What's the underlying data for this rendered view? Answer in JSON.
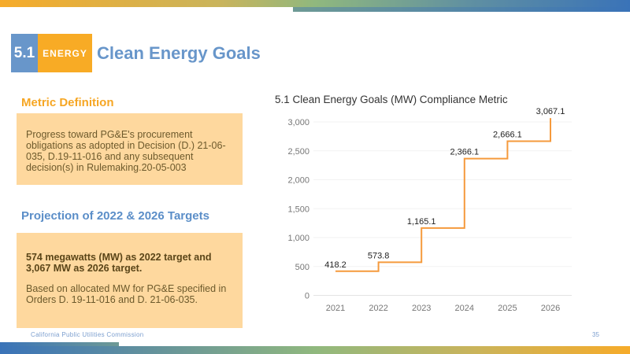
{
  "header": {
    "section_number": "5.1",
    "section_tag": "ENERGY",
    "title": "Clean Energy Goals"
  },
  "metric_definition": {
    "heading": "Metric Definition",
    "text": "Progress toward PG&E's procurement obligations as adopted in Decision (D.) 21-06-035, D.19-11-016 and any subsequent decision(s) in Rulemaking.20-05-003"
  },
  "projection": {
    "heading": "Projection of 2022 & 2026 Targets",
    "bold_text": "574 megawatts (MW) as 2022 target and 3,067 MW as 2026 target.",
    "text": "Based on allocated MW for PG&E specified in Orders D. 19-11-016 and D. 21-06-035."
  },
  "footer": {
    "organization": "California Public Utilities Commission",
    "page_number": "35"
  },
  "colors": {
    "accent_orange": "#f8ab25",
    "accent_blue": "#6896ca",
    "line": "#f59a3c",
    "box_fill": "#fed89e"
  },
  "chart_data": {
    "type": "line",
    "step": true,
    "title": "5.1 Clean Energy Goals (MW) Compliance Metric",
    "categories": [
      "2021",
      "2022",
      "2023",
      "2024",
      "2025",
      "2026"
    ],
    "values": [
      418.2,
      573.8,
      1165.1,
      2366.1,
      2666.1,
      3067.1
    ],
    "data_labels": [
      "418.2",
      "573.8",
      "1,165.1",
      "2,366.1",
      "2,666.1",
      "3,067.1"
    ],
    "yticks": [
      0,
      500,
      1000,
      1500,
      2000,
      2500,
      3000
    ],
    "ytick_labels": [
      "0",
      "500",
      "1,000",
      "1,500",
      "2,000",
      "2,500",
      "3,000"
    ],
    "ylim": [
      0,
      3000
    ],
    "grid": true,
    "xlabel": "",
    "ylabel": ""
  }
}
